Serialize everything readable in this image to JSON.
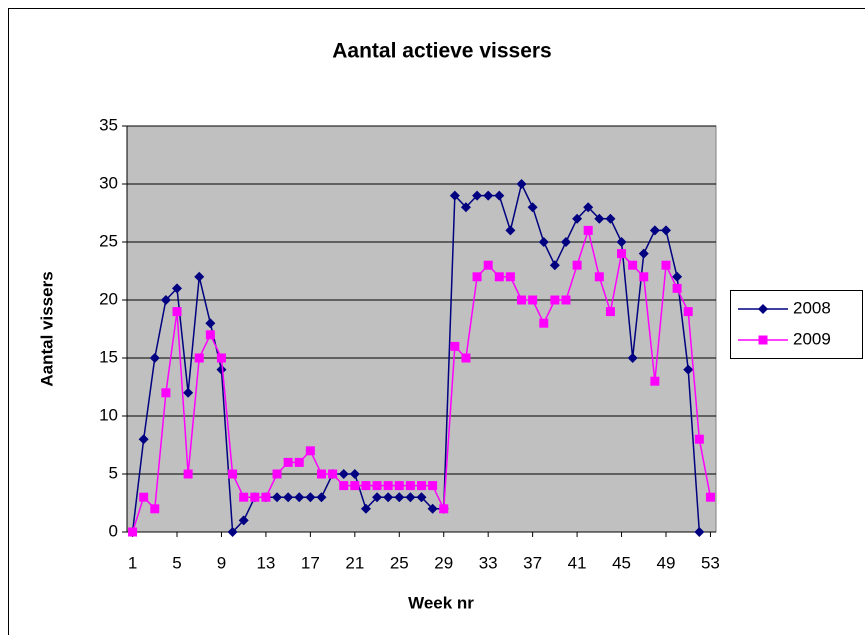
{
  "chart_data": {
    "type": "line",
    "title": "Aantal actieve vissers",
    "x_label": "Week nr",
    "y_label": "Aantal vissers",
    "x": [
      1,
      2,
      3,
      4,
      5,
      6,
      7,
      8,
      9,
      10,
      11,
      12,
      13,
      14,
      15,
      16,
      17,
      18,
      19,
      20,
      21,
      22,
      23,
      24,
      25,
      26,
      27,
      28,
      29,
      30,
      31,
      32,
      33,
      34,
      35,
      36,
      37,
      38,
      39,
      40,
      41,
      42,
      43,
      44,
      45,
      46,
      47,
      48,
      49,
      50,
      51,
      52,
      53
    ],
    "xlim": [
      0.5,
      53.5
    ],
    "xticks": [
      1,
      5,
      9,
      13,
      17,
      21,
      25,
      29,
      33,
      37,
      41,
      45,
      49,
      53
    ],
    "ylim": [
      0,
      35
    ],
    "yticks": [
      0,
      5,
      10,
      15,
      20,
      25,
      30,
      35
    ],
    "grid": true,
    "legend": "right",
    "series": [
      {
        "name": "2008",
        "color": "#000080",
        "marker": "diamond",
        "values": [
          0,
          8,
          15,
          20,
          21,
          12,
          22,
          18,
          14,
          0,
          1,
          3,
          3,
          3,
          3,
          3,
          3,
          3,
          5,
          5,
          5,
          2,
          3,
          3,
          3,
          3,
          3,
          2,
          2,
          29,
          28,
          29,
          29,
          29,
          26,
          30,
          28,
          25,
          23,
          25,
          27,
          28,
          27,
          27,
          25,
          15,
          24,
          26,
          26,
          22,
          14,
          0,
          null
        ]
      },
      {
        "name": "2009",
        "color": "#ff00ff",
        "marker": "square",
        "values": [
          0,
          3,
          2,
          12,
          19,
          5,
          15,
          17,
          15,
          5,
          3,
          3,
          3,
          5,
          6,
          6,
          7,
          5,
          5,
          4,
          4,
          4,
          4,
          4,
          4,
          4,
          4,
          4,
          2,
          16,
          15,
          22,
          23,
          22,
          22,
          20,
          20,
          18,
          20,
          20,
          23,
          26,
          22,
          19,
          24,
          23,
          22,
          13,
          23,
          21,
          19,
          8,
          3
        ]
      }
    ]
  }
}
